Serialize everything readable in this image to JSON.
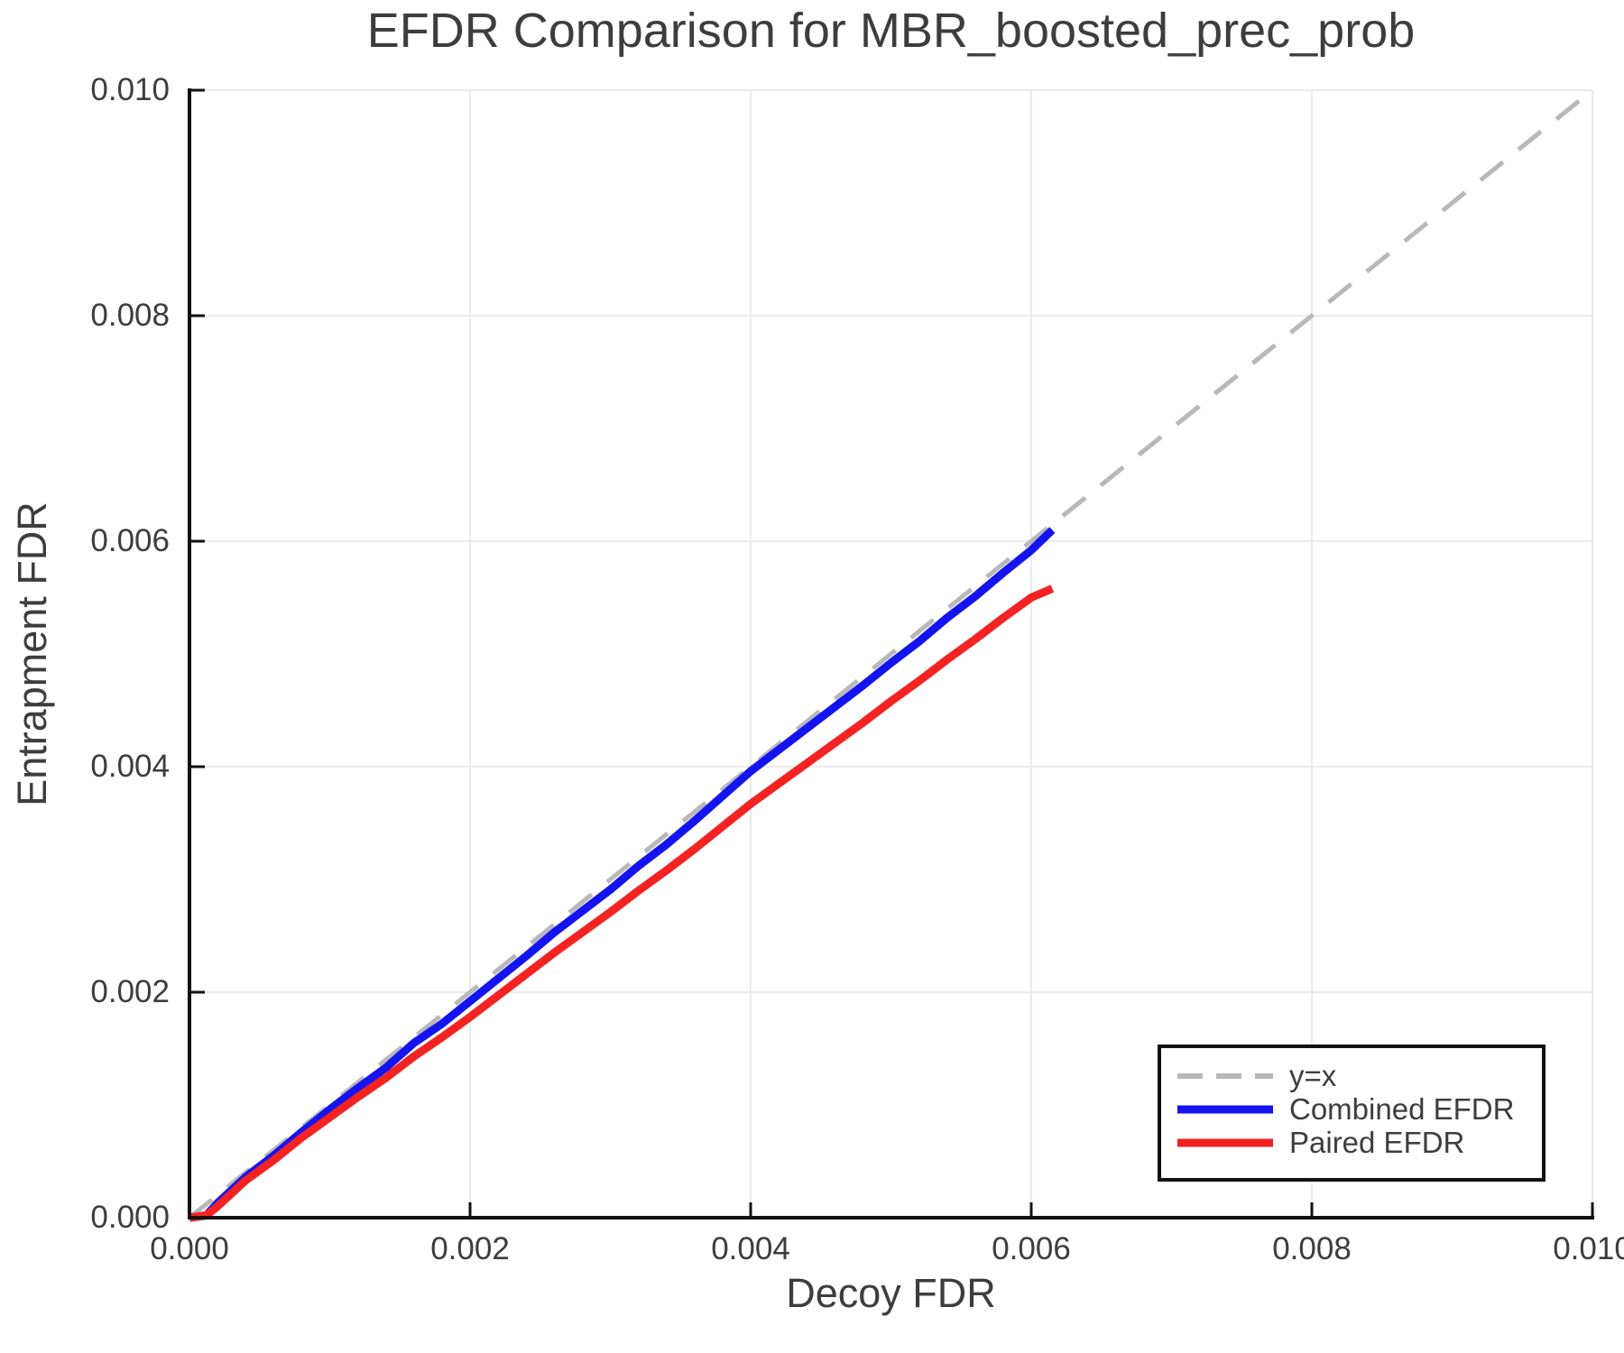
{
  "chart_data": {
    "type": "line",
    "title": "EFDR Comparison for MBR_boosted_prec_prob",
    "xlabel": "Decoy FDR",
    "ylabel": "Entrapment FDR",
    "xlim": [
      0.0,
      0.01
    ],
    "ylim": [
      0.0,
      0.01
    ],
    "grid": true,
    "legend_position": "lower right",
    "x_ticks": {
      "values": [
        0.0,
        0.002,
        0.004,
        0.006,
        0.008,
        0.01
      ],
      "labels": [
        "0.000",
        "0.002",
        "0.004",
        "0.006",
        "0.008",
        "0.010"
      ]
    },
    "y_ticks": {
      "values": [
        0.0,
        0.002,
        0.004,
        0.006,
        0.008,
        0.01
      ],
      "labels": [
        "0.000",
        "0.002",
        "0.004",
        "0.006",
        "0.008",
        "0.010"
      ]
    },
    "colors": {
      "identity_line": "#b8b8b8",
      "combined_efdr": "#1414f0",
      "paired_efdr": "#f52222",
      "gridline": "#ebebeb",
      "spine": "#111111",
      "text": "#3d3d3d"
    },
    "series": [
      {
        "name": "y=x",
        "color": "#b8b8b8",
        "dashed": true,
        "points": [
          [
            0.0,
            0.0
          ],
          [
            0.01,
            0.01
          ]
        ]
      },
      {
        "name": "Combined EFDR",
        "color": "#1414f0",
        "dashed": false,
        "points": [
          [
            0.0,
            0.0
          ],
          [
            0.00012,
            2e-05
          ],
          [
            0.0002,
            0.00013
          ],
          [
            0.0004,
            0.00036
          ],
          [
            0.0006,
            0.00055
          ],
          [
            0.0008,
            0.00076
          ],
          [
            0.001,
            0.00096
          ],
          [
            0.0012,
            0.00115
          ],
          [
            0.0014,
            0.00133
          ],
          [
            0.0016,
            0.00155
          ],
          [
            0.0018,
            0.00172
          ],
          [
            0.002,
            0.00192
          ],
          [
            0.0022,
            0.00212
          ],
          [
            0.0024,
            0.00232
          ],
          [
            0.0026,
            0.00253
          ],
          [
            0.0028,
            0.00272
          ],
          [
            0.003,
            0.00291
          ],
          [
            0.0032,
            0.00312
          ],
          [
            0.0034,
            0.00331
          ],
          [
            0.0036,
            0.00352
          ],
          [
            0.0038,
            0.00374
          ],
          [
            0.004,
            0.00396
          ],
          [
            0.0042,
            0.00415
          ],
          [
            0.0044,
            0.00434
          ],
          [
            0.0046,
            0.00453
          ],
          [
            0.0048,
            0.00472
          ],
          [
            0.005,
            0.00492
          ],
          [
            0.0052,
            0.00511
          ],
          [
            0.0054,
            0.00532
          ],
          [
            0.0056,
            0.00551
          ],
          [
            0.0058,
            0.00572
          ],
          [
            0.006,
            0.00592
          ],
          [
            0.00615,
            0.0061
          ]
        ]
      },
      {
        "name": "Paired EFDR",
        "color": "#f52222",
        "dashed": false,
        "points": [
          [
            0.0,
            0.0
          ],
          [
            0.00012,
            2e-05
          ],
          [
            0.0002,
            0.0001
          ],
          [
            0.0004,
            0.00033
          ],
          [
            0.0006,
            0.00051
          ],
          [
            0.0008,
            0.00071
          ],
          [
            0.001,
            0.00089
          ],
          [
            0.0012,
            0.00107
          ],
          [
            0.0014,
            0.00124
          ],
          [
            0.0016,
            0.00143
          ],
          [
            0.0018,
            0.0016
          ],
          [
            0.002,
            0.00178
          ],
          [
            0.0022,
            0.00197
          ],
          [
            0.0024,
            0.00216
          ],
          [
            0.0026,
            0.00235
          ],
          [
            0.0028,
            0.00253
          ],
          [
            0.003,
            0.00271
          ],
          [
            0.0032,
            0.0029
          ],
          [
            0.0034,
            0.00308
          ],
          [
            0.0036,
            0.00327
          ],
          [
            0.0038,
            0.00347
          ],
          [
            0.004,
            0.00367
          ],
          [
            0.0042,
            0.00385
          ],
          [
            0.0044,
            0.00403
          ],
          [
            0.0046,
            0.00421
          ],
          [
            0.0048,
            0.00439
          ],
          [
            0.005,
            0.00458
          ],
          [
            0.0052,
            0.00476
          ],
          [
            0.0054,
            0.00495
          ],
          [
            0.0056,
            0.00513
          ],
          [
            0.0058,
            0.00532
          ],
          [
            0.006,
            0.0055
          ],
          [
            0.00615,
            0.00558
          ]
        ]
      }
    ]
  }
}
